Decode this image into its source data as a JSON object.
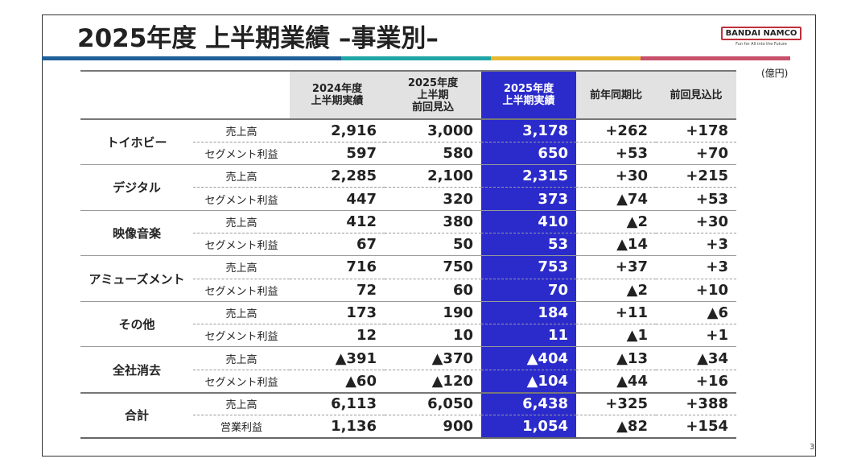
{
  "title": "2025年度 上半期業績 –事業別–",
  "logo": {
    "name": "BANDAI NAMCO",
    "tagline": "Fun for All into the Future"
  },
  "accent_colors": [
    "#1f5f99",
    "#1fa5a5",
    "#e8b830",
    "#c8506a"
  ],
  "highlight_color": "#2b2bcc",
  "unit": "(億円)",
  "page_number": "3",
  "headers": [
    "2024年度\n上半期実績",
    "2025年度\n上半期\n前回見込",
    "2025年度\n上半期実績",
    "前年同期比",
    "前回見込比"
  ],
  "segments": [
    {
      "name": "トイホビー",
      "rows": [
        {
          "label": "売上高",
          "values": [
            "2,916",
            "3,000",
            "3,178",
            "+262",
            "+178"
          ]
        },
        {
          "label": "セグメント利益",
          "values": [
            "597",
            "580",
            "650",
            "+53",
            "+70"
          ]
        }
      ]
    },
    {
      "name": "デジタル",
      "rows": [
        {
          "label": "売上高",
          "values": [
            "2,285",
            "2,100",
            "2,315",
            "+30",
            "+215"
          ]
        },
        {
          "label": "セグメント利益",
          "values": [
            "447",
            "320",
            "373",
            "▲74",
            "+53"
          ]
        }
      ]
    },
    {
      "name": "映像音楽",
      "rows": [
        {
          "label": "売上高",
          "values": [
            "412",
            "380",
            "410",
            "▲2",
            "+30"
          ]
        },
        {
          "label": "セグメント利益",
          "values": [
            "67",
            "50",
            "53",
            "▲14",
            "+3"
          ]
        }
      ]
    },
    {
      "name": "アミューズメント",
      "rows": [
        {
          "label": "売上高",
          "values": [
            "716",
            "750",
            "753",
            "+37",
            "+3"
          ]
        },
        {
          "label": "セグメント利益",
          "values": [
            "72",
            "60",
            "70",
            "▲2",
            "+10"
          ]
        }
      ]
    },
    {
      "name": "その他",
      "rows": [
        {
          "label": "売上高",
          "values": [
            "173",
            "190",
            "184",
            "+11",
            "▲6"
          ]
        },
        {
          "label": "セグメント利益",
          "values": [
            "12",
            "10",
            "11",
            "▲1",
            "+1"
          ]
        }
      ]
    },
    {
      "name": "全社消去",
      "rows": [
        {
          "label": "売上高",
          "values": [
            "▲391",
            "▲370",
            "▲404",
            "▲13",
            "▲34"
          ]
        },
        {
          "label": "セグメント利益",
          "values": [
            "▲60",
            "▲120",
            "▲104",
            "▲44",
            "+16"
          ]
        }
      ]
    },
    {
      "name": "合計",
      "rows": [
        {
          "label": "売上高",
          "values": [
            "6,113",
            "6,050",
            "6,438",
            "+325",
            "+388"
          ]
        },
        {
          "label": "営業利益",
          "values": [
            "1,136",
            "900",
            "1,054",
            "▲82",
            "+154"
          ]
        }
      ]
    }
  ]
}
